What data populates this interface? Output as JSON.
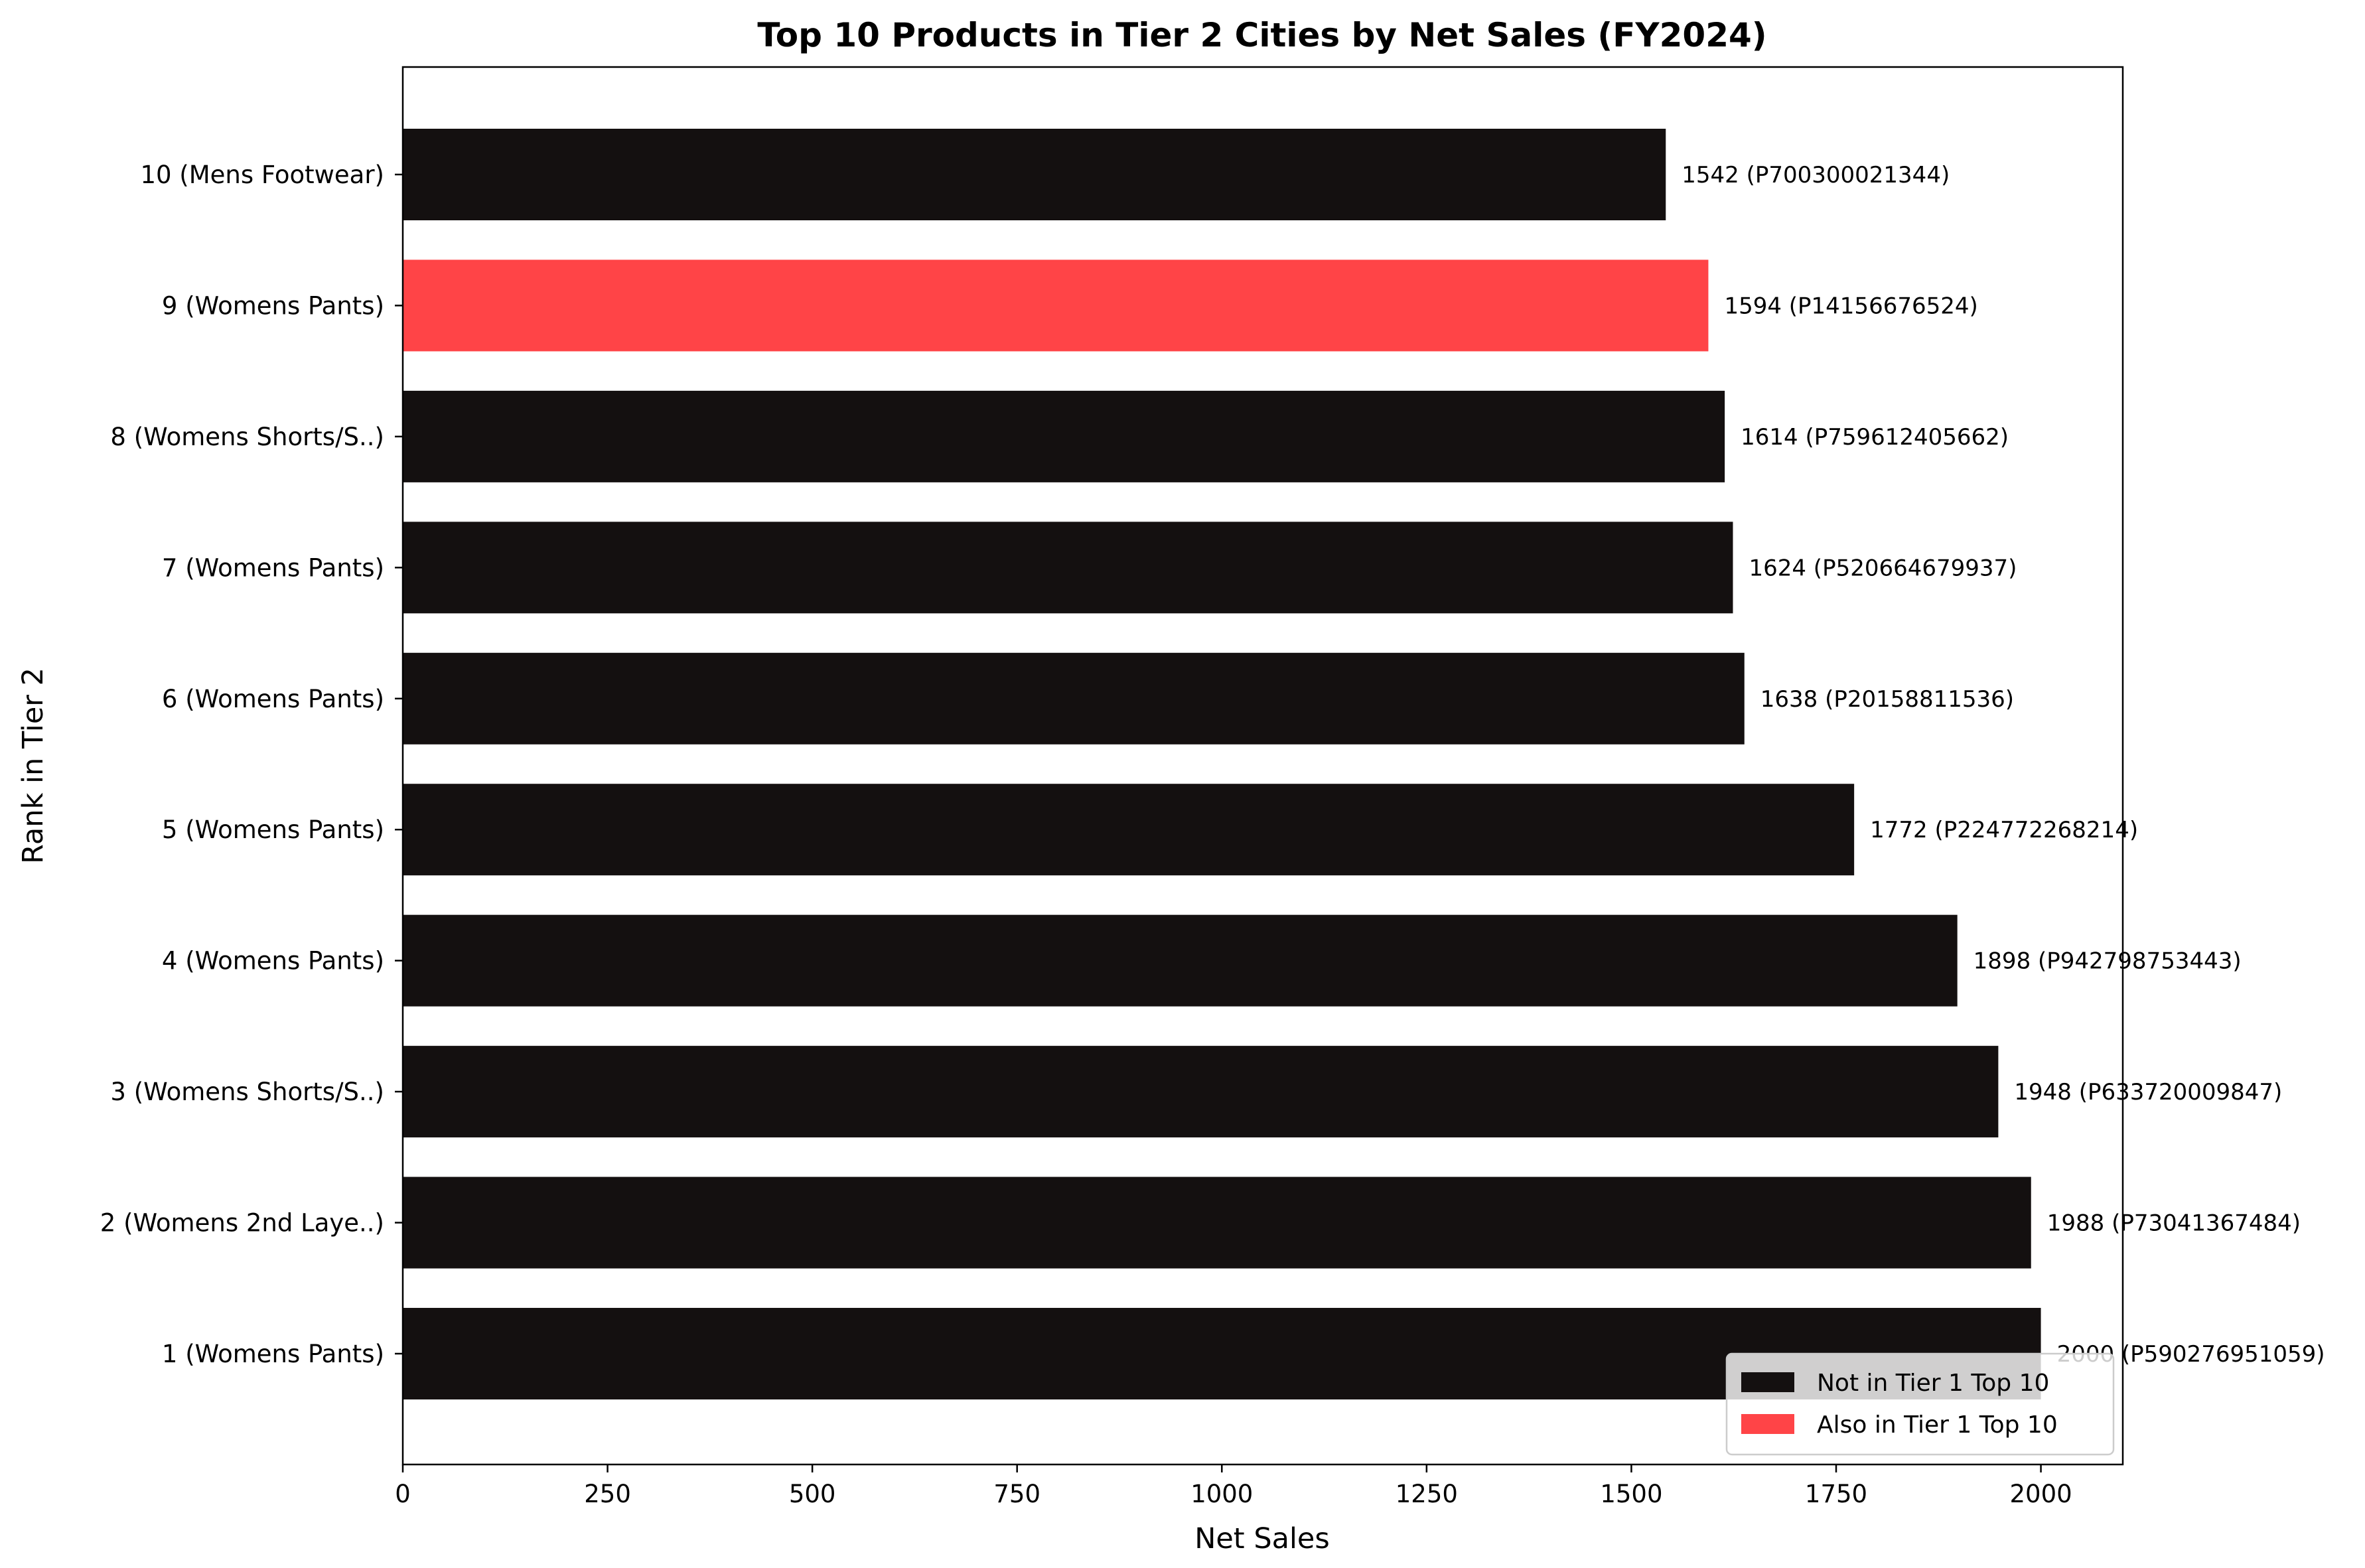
{
  "chart_data": {
    "type": "bar",
    "orientation": "horizontal",
    "title": "Top 10 Products in Tier 2 Cities by Net Sales (FY2024)",
    "xlabel": "Net Sales",
    "ylabel": "Rank in Tier 2",
    "xlim": [
      0,
      2100
    ],
    "xticks": [
      0,
      250,
      500,
      750,
      1000,
      1250,
      1500,
      1750,
      2000
    ],
    "grid": false,
    "legend_position": "bottom-right",
    "categories": [
      "1 (Womens Pants)",
      "2 (Womens 2nd Laye..)",
      "3 (Womens Shorts/S..)",
      "4 (Womens Pants)",
      "5 (Womens Pants)",
      "6 (Womens Pants)",
      "7 (Womens Pants)",
      "8 (Womens Shorts/S..)",
      "9 (Womens Pants)",
      "10 (Mens Footwear)"
    ],
    "values": [
      2000,
      1988,
      1948,
      1898,
      1772,
      1638,
      1624,
      1614,
      1594,
      1542
    ],
    "data_labels": [
      "2000 (P590276951059)",
      "1988 (P73041367484)",
      "1948 (P633720009847)",
      "1898 (P942798753443)",
      "1772 (P224772268214)",
      "1638 (P20158811536)",
      "1624 (P520664679937)",
      "1614 (P759612405662)",
      "1594 (P14156676524)",
      "1542 (P700300021344)"
    ],
    "also_in_tier1": [
      false,
      false,
      false,
      false,
      false,
      false,
      false,
      false,
      true,
      false
    ],
    "legend": [
      {
        "label": "Not in Tier 1 Top 10",
        "color": "#141010"
      },
      {
        "label": "Also in Tier 1 Top 10",
        "color": "#ff4447"
      }
    ],
    "colors": {
      "not_in_tier1": "#141010",
      "also_in_tier1": "#ff4447"
    }
  }
}
